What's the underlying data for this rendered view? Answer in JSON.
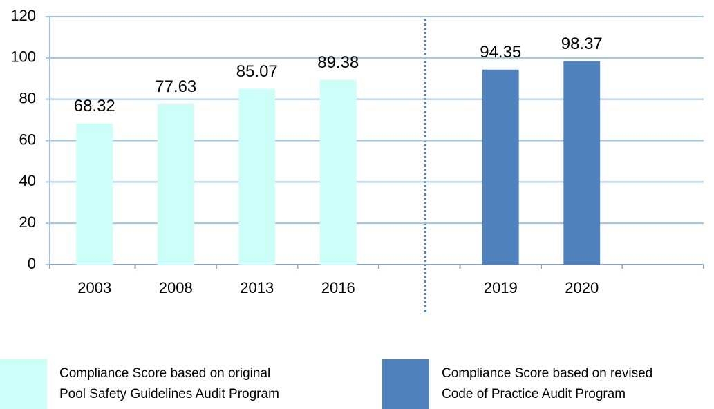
{
  "chart_data": {
    "type": "bar",
    "categories": [
      "2003",
      "2008",
      "2013",
      "2016",
      null,
      "2019",
      "2020",
      null
    ],
    "series": [
      {
        "name": "Compliance Score based on original\nPool Safety Guidelines Audit Program",
        "color": "#ccfff8",
        "values": [
          68.32,
          77.63,
          85.07,
          89.38,
          null,
          null,
          null,
          null
        ]
      },
      {
        "name": "Compliance Score based on revised\nCode of Practice Audit Program",
        "color": "#4f81bd",
        "values": [
          null,
          null,
          null,
          null,
          null,
          94.35,
          98.37,
          null
        ]
      }
    ],
    "ylim": [
      0,
      120
    ],
    "yticks": [
      0,
      20,
      40,
      60,
      80,
      100,
      120
    ],
    "grid": true
  }
}
